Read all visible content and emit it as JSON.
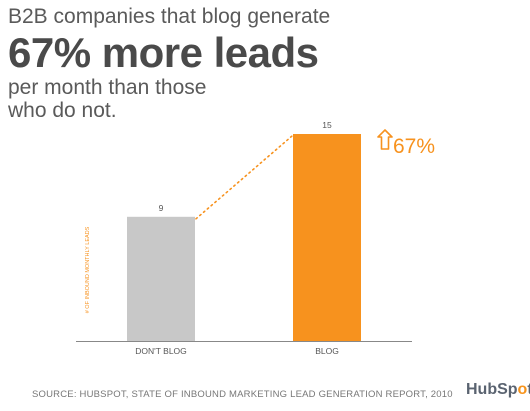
{
  "headline": {
    "line1": "B2B companies that blog generate",
    "line2": "67% more leads",
    "line3": "per month than those",
    "line4": "who do not."
  },
  "chart_data": {
    "type": "bar",
    "categories": [
      "DON'T BLOG",
      "BLOG"
    ],
    "values": [
      9,
      15
    ],
    "value_labels": [
      "9",
      "15"
    ],
    "colors": [
      "#c8c8c8",
      "#f7921e"
    ],
    "ylabel": "# OF INBOUND MONTHLY LEADS",
    "ylim": [
      0,
      15
    ],
    "grid": false,
    "annotation": {
      "text": "67%",
      "icon": "up-arrow-outline-icon",
      "color": "#f7921e",
      "connector": "dotted"
    }
  },
  "source": "SOURCE: HUBSPOT, STATE OF INBOUND MARKETING LEAD GENERATION REPORT, 2010",
  "logo": {
    "text_before": "HubSp",
    "text_sprocket": "o",
    "text_after": "t"
  }
}
